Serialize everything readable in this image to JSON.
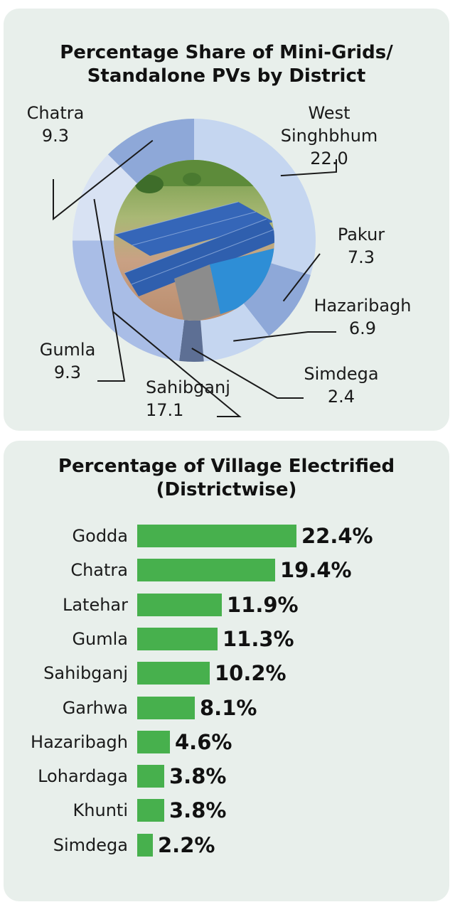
{
  "chart_data": [
    {
      "type": "pie",
      "title": "Percentage Share of Mini-Grids/ Standalone PVs by District",
      "categories": [
        "West Singhbhum",
        "Pakur",
        "Hazaribagh",
        "Simdega",
        "Sahibganj",
        "Gumla",
        "Chatra"
      ],
      "values": [
        22.0,
        7.3,
        6.9,
        2.4,
        17.1,
        9.3,
        9.3
      ],
      "value_labels": [
        "22.0",
        "7.3",
        "6.9",
        "2.4",
        "17.1",
        "9.3",
        "9.3"
      ],
      "colors": [
        "#c5d6f0",
        "#8ea8d8",
        "#c5d6f0",
        "#5d6f94",
        "#a9bde6",
        "#d8e2f3",
        "#8ea8d8"
      ],
      "center_image": "solar-panel-photo"
    },
    {
      "type": "bar",
      "orientation": "horizontal",
      "title": "Percentage of Village Electrified (Districtwise)",
      "categories": [
        "Godda",
        "Chatra",
        "Latehar",
        "Gumla",
        "Sahibganj",
        "Garhwa",
        "Hazaribagh",
        "Lohardaga",
        "Khunti",
        "Simdega"
      ],
      "values": [
        22.4,
        19.4,
        11.9,
        11.3,
        10.2,
        8.1,
        4.6,
        3.8,
        3.8,
        2.2
      ],
      "value_labels": [
        "22.4%",
        "19.4%",
        "11.9%",
        "11.3%",
        "10.2%",
        "8.1%",
        "4.6%",
        "3.8%",
        "3.8%",
        "2.2%"
      ],
      "xlim": [
        0,
        22.4
      ],
      "bar_color": "#47b04d"
    }
  ],
  "colors": {
    "panel_bg": "#e8efeb",
    "bar": "#47b04d"
  }
}
